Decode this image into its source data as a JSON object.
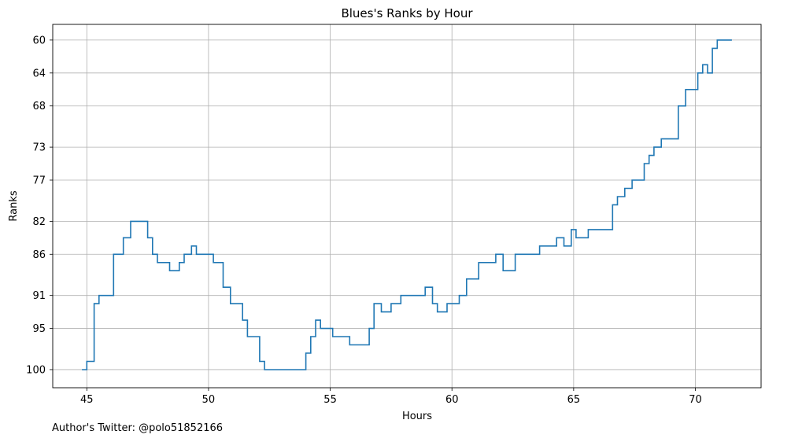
{
  "chart_data": {
    "type": "line",
    "title": "Blues's Ranks by Hour",
    "xlabel": "Hours",
    "ylabel": "Ranks",
    "xlim": [
      43.6,
      72.7
    ],
    "ylim": [
      102.2,
      58.1
    ],
    "y_inverted": true,
    "grid": true,
    "step": true,
    "color": "#1f77b4",
    "xticks": [
      45,
      50,
      55,
      60,
      65,
      70
    ],
    "yticks": [
      60,
      64,
      68,
      73,
      77,
      82,
      86,
      91,
      95,
      100
    ],
    "series": [
      {
        "name": "",
        "x": [
          44.8,
          45.0,
          45.3,
          45.5,
          45.7,
          46.1,
          46.5,
          46.8,
          47.2,
          47.5,
          47.7,
          47.9,
          48.4,
          48.8,
          49.0,
          49.3,
          49.5,
          49.7,
          50.2,
          50.6,
          50.9,
          51.4,
          51.6,
          52.1,
          52.3,
          53.0,
          54.0,
          54.2,
          54.4,
          54.6,
          55.1,
          55.8,
          56.6,
          56.8,
          57.1,
          57.5,
          57.9,
          58.4,
          58.9,
          59.2,
          59.4,
          59.8,
          60.3,
          60.6,
          61.1,
          61.6,
          61.8,
          62.1,
          62.6,
          63.1,
          63.6,
          64.1,
          64.3,
          64.6,
          64.9,
          65.1,
          65.6,
          66.1,
          66.6,
          66.8,
          67.1,
          67.4,
          67.9,
          68.1,
          68.3,
          68.6,
          68.8,
          69.3,
          69.6,
          69.9,
          70.1,
          70.3,
          70.5,
          70.7,
          70.9,
          71.1,
          71.3,
          71.5
        ],
        "y": [
          100,
          99,
          92,
          91,
          91,
          86,
          84,
          82,
          82,
          84,
          86,
          87,
          88,
          87,
          86,
          85,
          86,
          86,
          87,
          90,
          92,
          94,
          96,
          99,
          100,
          100,
          98,
          96,
          94,
          95,
          96,
          97,
          95,
          92,
          93,
          92,
          91,
          91,
          90,
          92,
          93,
          92,
          91,
          89,
          87,
          87,
          86,
          88,
          86,
          86,
          85,
          85,
          84,
          85,
          83,
          84,
          83,
          83,
          80,
          79,
          78,
          77,
          75,
          74,
          73,
          72,
          72,
          68,
          66,
          66,
          64,
          63,
          64,
          61,
          60,
          60,
          60,
          60
        ]
      }
    ]
  },
  "footer": {
    "credit": "Author's Twitter: @polo51852166"
  }
}
